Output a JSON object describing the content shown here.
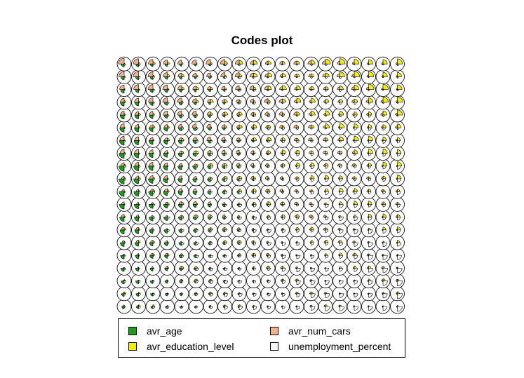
{
  "chart_data": {
    "type": "som-codes",
    "title": "Codes plot",
    "grid": {
      "rows": 20,
      "cols": 20,
      "topology": "hexagonal"
    },
    "variables": [
      {
        "name": "avr_age",
        "color": "#1a9e1a"
      },
      {
        "name": "avr_education_level",
        "color": "#f0f000"
      },
      {
        "name": "avr_num_cars",
        "color": "#f4b08a"
      },
      {
        "name": "unemployment_percent",
        "color": "#f8f8f8"
      }
    ],
    "legend": {
      "placement": "bottom",
      "columns": 2
    }
  }
}
